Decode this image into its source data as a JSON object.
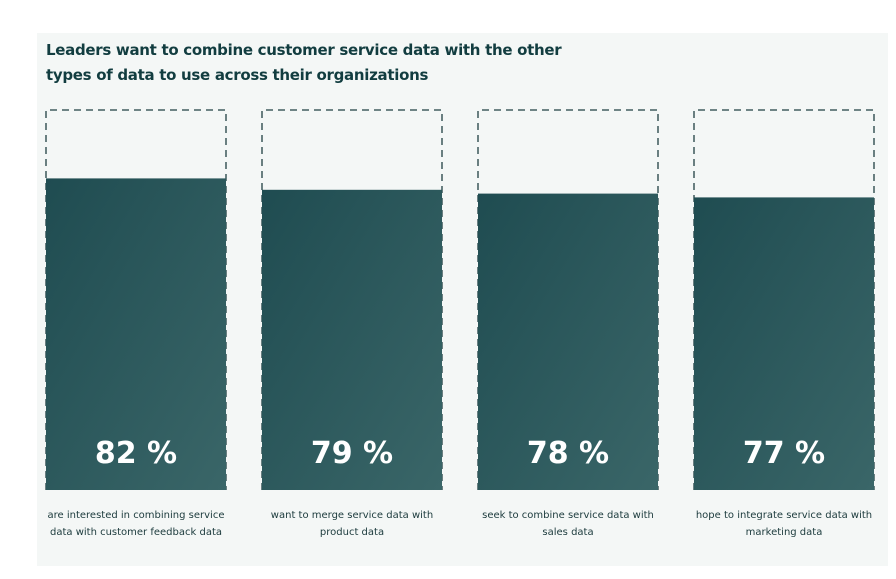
{
  "chart_data": {
    "type": "bar",
    "title": "Leaders want to combine customer service data with the other types of data to use across their organizations",
    "ylim": [
      0,
      100
    ],
    "unit": "%",
    "categories": [
      "are interested in combining service data with customer feedback data",
      "want to merge service data with product data",
      "seek to combine service data with sales data",
      "hope to integrate service data with marketing data"
    ],
    "values": [
      82,
      79,
      78,
      77
    ],
    "value_labels": [
      "82 %",
      "79 %",
      "78 %",
      "77 %"
    ],
    "grid": false,
    "legend": "none"
  },
  "colors": {
    "bar": "#245156",
    "bar_light": "#3a6668",
    "outline": "#1f3f42",
    "background": "#f4f7f6",
    "title": "#123d40"
  }
}
